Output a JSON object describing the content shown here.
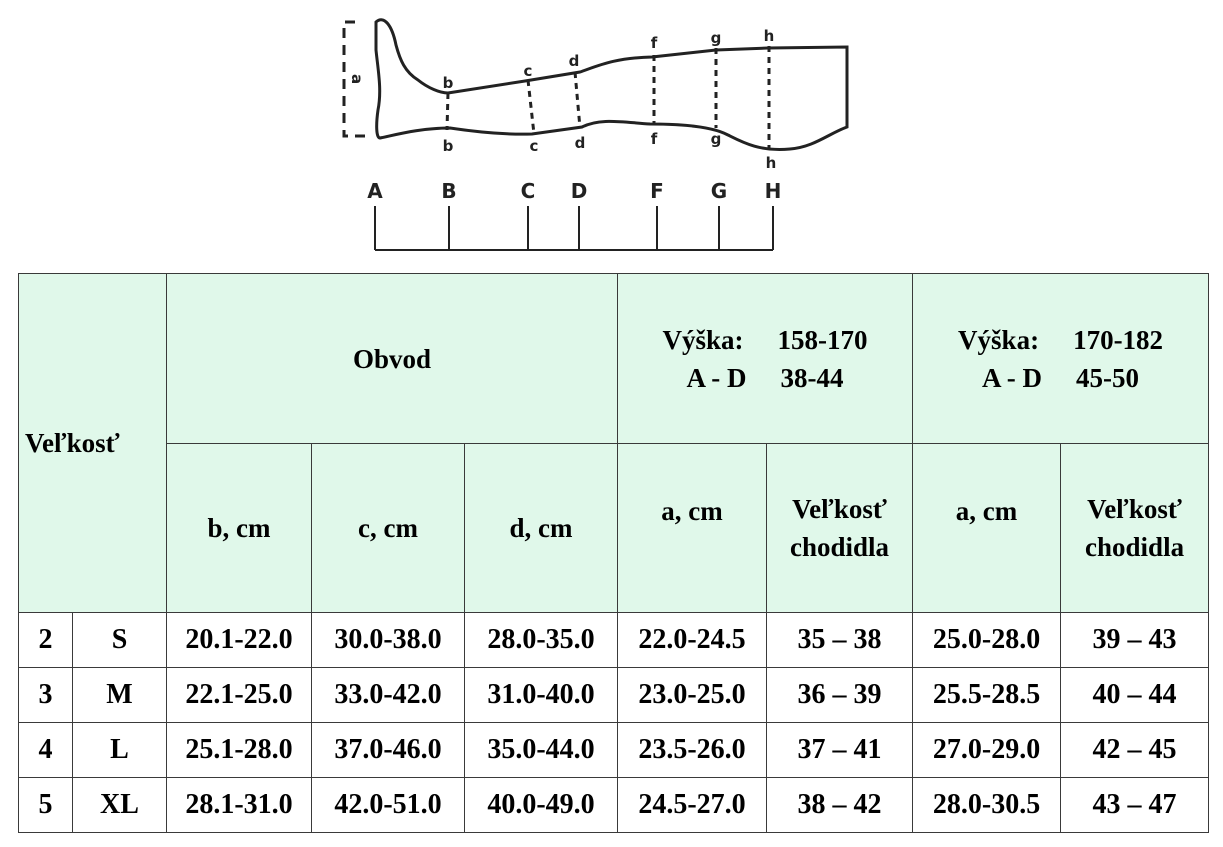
{
  "diagram": {
    "measure_points_top": [
      "b",
      "c",
      "d",
      "f",
      "g",
      "h"
    ],
    "measure_points_bottom": [
      "b",
      "c",
      "d",
      "f",
      "g",
      "h"
    ],
    "length_label": "a",
    "axis_labels": [
      "A",
      "B",
      "C",
      "D",
      "F",
      "G",
      "H"
    ]
  },
  "table": {
    "header": {
      "size_label": "Veľkosť",
      "circumference_label": "Obvod",
      "group1": {
        "height_label": "Výška:",
        "height_value": "158-170",
        "range_label": "A - D",
        "range_value": "38-44"
      },
      "group2": {
        "height_label": "Výška:",
        "height_value": "170-182",
        "range_label": "A - D",
        "range_value": "45-50"
      },
      "b_col": "b, cm",
      "c_col": "c, cm",
      "d_col": "d, cm",
      "a_col_1": "a, cm",
      "foot_col_1_line1": "Veľkosť",
      "foot_col_1_line2": "chodidla",
      "a_col_2": "a, cm",
      "foot_col_2_line1": "Veľkosť",
      "foot_col_2_line2": "chodidla"
    },
    "rows": [
      [
        "2",
        "S",
        "20.1-22.0",
        "30.0-38.0",
        "28.0-35.0",
        "22.0-24.5",
        "35 – 38",
        "25.0-28.0",
        "39 – 43"
      ],
      [
        "3",
        "M",
        "22.1-25.0",
        "33.0-42.0",
        "31.0-40.0",
        "23.0-25.0",
        "36 – 39",
        "25.5-28.5",
        "40 – 44"
      ],
      [
        "4",
        "L",
        "25.1-28.0",
        "37.0-46.0",
        "35.0-44.0",
        "23.5-26.0",
        "37 – 41",
        "27.0-29.0",
        "42 – 45"
      ],
      [
        "5",
        "XL",
        "28.1-31.0",
        "42.0-51.0",
        "40.0-49.0",
        "24.5-27.0",
        "38 – 42",
        "28.0-30.5",
        "43 – 47"
      ]
    ]
  }
}
